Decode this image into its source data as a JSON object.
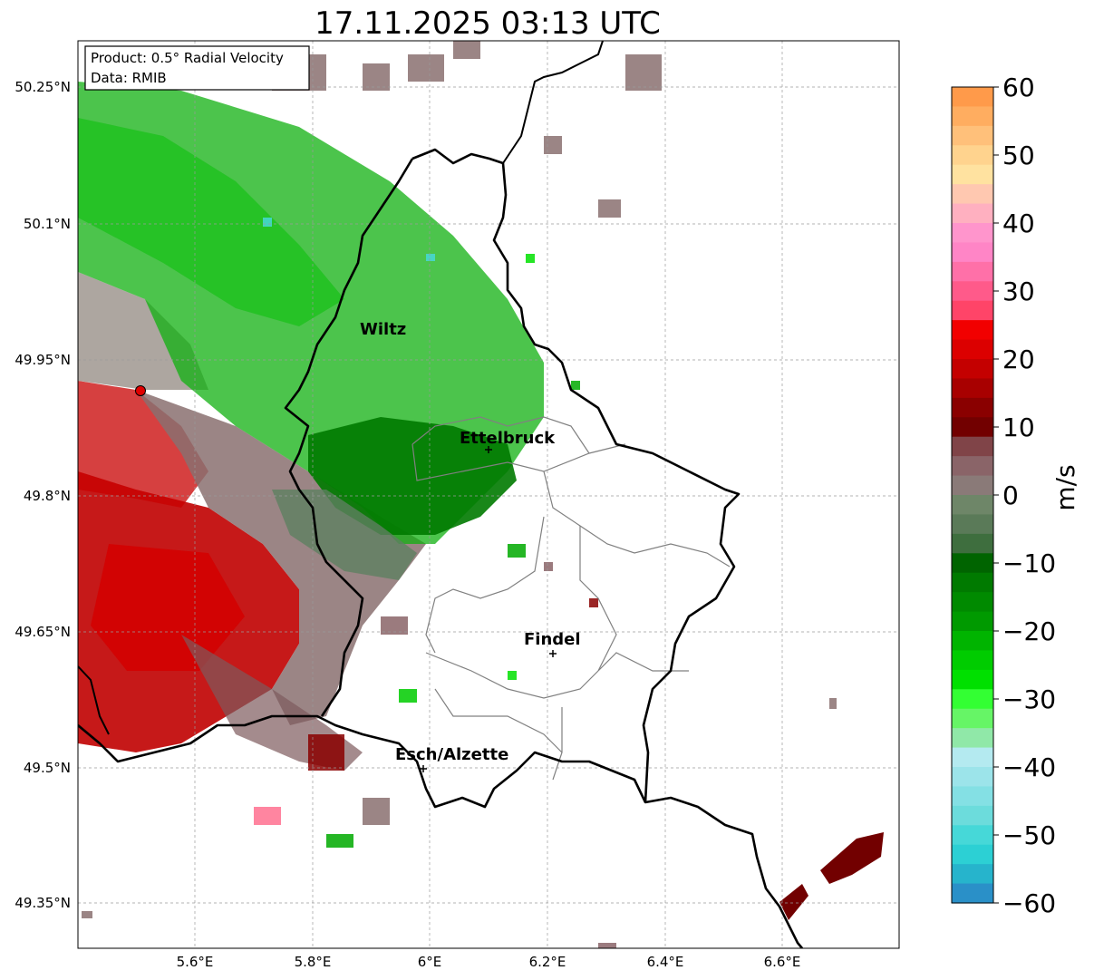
{
  "title": "17.11.2025 03:13 UTC",
  "info_box": {
    "product": "Product: 0.5° Radial Velocity",
    "data": "Data: RMIB"
  },
  "colorbar": {
    "unit": "m/s",
    "min": -60,
    "max": 60,
    "ticks": [
      "60",
      "50",
      "40",
      "30",
      "20",
      "10",
      "0",
      "−10",
      "−20",
      "−30",
      "−40",
      "−50",
      "−60"
    ],
    "colors_top_to_bottom": [
      "#ff9a4a",
      "#ffad60",
      "#ffc07a",
      "#ffd38e",
      "#ffe2a0",
      "#ffc8b0",
      "#ffb0c0",
      "#ff95cc",
      "#ff85c6",
      "#ff70a8",
      "#ff5a8a",
      "#ff4468",
      "#f20000",
      "#dc0000",
      "#c40000",
      "#a80000",
      "#8a0000",
      "#720000",
      "#804448",
      "#8a6468",
      "#8a7a78",
      "#6e8668",
      "#5a7a58",
      "#3e6e3e",
      "#006400",
      "#007a00",
      "#008a00",
      "#009a00",
      "#00b400",
      "#00cc00",
      "#00e000",
      "#33ff33",
      "#66f566",
      "#90e8a8",
      "#b4eaf0",
      "#9ce4ea",
      "#84e0e4",
      "#6cdcdc",
      "#46d8d8",
      "#2cd0d4",
      "#26b4cc",
      "#2a90c8"
    ]
  },
  "axes": {
    "lat_labels": [
      "50.25°N",
      "50.1°N",
      "49.95°N",
      "49.8°N",
      "49.65°N",
      "49.5°N",
      "49.35°N"
    ],
    "lon_labels": [
      "5.6°E",
      "5.8°E",
      "6°E",
      "6.2°E",
      "6.4°E",
      "6.6°E"
    ],
    "gridlines": true
  },
  "places": [
    {
      "name": "Wiltz"
    },
    {
      "name": "Ettelbruck"
    },
    {
      "name": "Findel"
    },
    {
      "name": "Esch/Alzette"
    }
  ],
  "radar_site_color": "#e00000",
  "map_view_colors": {
    "receding": "#c40000",
    "approaching": "#00aa00",
    "near_zero": "#8a7a78"
  }
}
